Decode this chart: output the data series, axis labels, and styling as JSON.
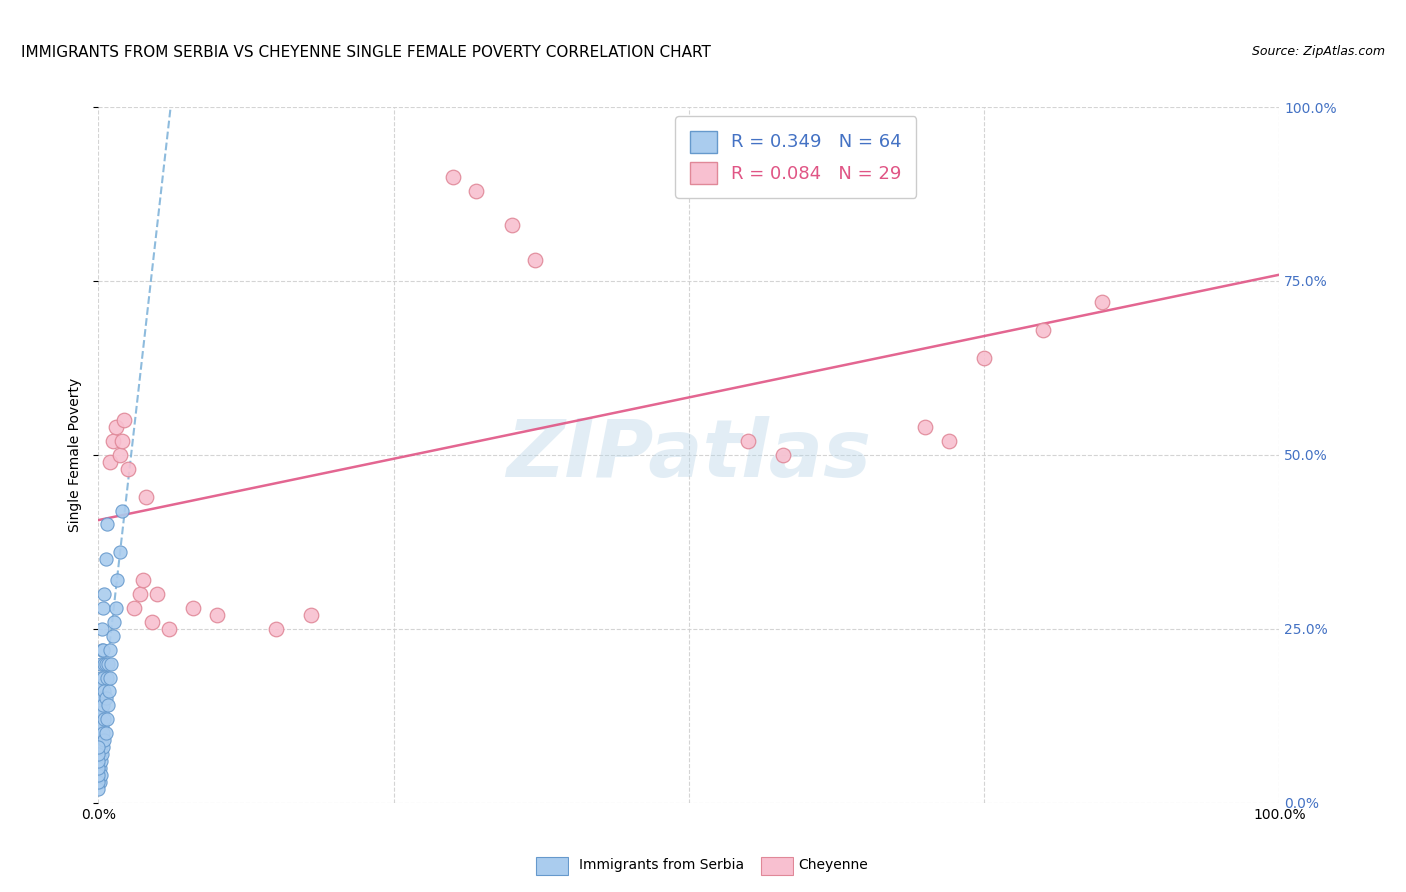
{
  "title": "IMMIGRANTS FROM SERBIA VS CHEYENNE SINGLE FEMALE POVERTY CORRELATION CHART",
  "source": "Source: ZipAtlas.com",
  "ylabel": "Single Female Poverty",
  "watermark": "ZIPatlas",
  "xlim": [
    0,
    1.0
  ],
  "ylim": [
    0,
    1.0
  ],
  "serbia_x": [
    0.001,
    0.001,
    0.001,
    0.001,
    0.001,
    0.001,
    0.001,
    0.001,
    0.001,
    0.001,
    0.002,
    0.002,
    0.002,
    0.002,
    0.002,
    0.002,
    0.002,
    0.002,
    0.002,
    0.003,
    0.003,
    0.003,
    0.003,
    0.003,
    0.003,
    0.003,
    0.003,
    0.004,
    0.004,
    0.004,
    0.004,
    0.004,
    0.004,
    0.005,
    0.005,
    0.005,
    0.005,
    0.005,
    0.006,
    0.006,
    0.006,
    0.006,
    0.007,
    0.007,
    0.007,
    0.008,
    0.008,
    0.009,
    0.01,
    0.01,
    0.011,
    0.012,
    0.013,
    0.015,
    0.016,
    0.018,
    0.02,
    0.0,
    0.0,
    0.0,
    0.0,
    0.0,
    0.0,
    0.0
  ],
  "serbia_y": [
    0.05,
    0.07,
    0.08,
    0.1,
    0.11,
    0.12,
    0.13,
    0.14,
    0.15,
    0.03,
    0.06,
    0.08,
    0.1,
    0.12,
    0.14,
    0.16,
    0.18,
    0.2,
    0.04,
    0.07,
    0.09,
    0.11,
    0.13,
    0.15,
    0.17,
    0.22,
    0.25,
    0.08,
    0.1,
    0.14,
    0.18,
    0.22,
    0.28,
    0.09,
    0.12,
    0.16,
    0.2,
    0.3,
    0.1,
    0.15,
    0.2,
    0.35,
    0.12,
    0.18,
    0.4,
    0.14,
    0.2,
    0.16,
    0.18,
    0.22,
    0.2,
    0.24,
    0.26,
    0.28,
    0.32,
    0.36,
    0.42,
    0.02,
    0.03,
    0.04,
    0.05,
    0.06,
    0.07,
    0.08
  ],
  "cheyenne_x": [
    0.01,
    0.012,
    0.015,
    0.018,
    0.02,
    0.022,
    0.025,
    0.03,
    0.035,
    0.038,
    0.04,
    0.045,
    0.05,
    0.06,
    0.08,
    0.1,
    0.15,
    0.18,
    0.3,
    0.32,
    0.35,
    0.37,
    0.55,
    0.58,
    0.7,
    0.72,
    0.75,
    0.8,
    0.85
  ],
  "cheyenne_y": [
    0.49,
    0.52,
    0.54,
    0.5,
    0.52,
    0.55,
    0.48,
    0.28,
    0.3,
    0.32,
    0.44,
    0.26,
    0.3,
    0.25,
    0.28,
    0.27,
    0.25,
    0.27,
    0.9,
    0.88,
    0.83,
    0.78,
    0.52,
    0.5,
    0.54,
    0.52,
    0.64,
    0.68,
    0.72
  ],
  "serbia_trendline_color": "#7ab0d8",
  "cheyenne_trendline_color": "#e05585",
  "serbia_dot_facecolor": "#aaccee",
  "serbia_dot_edgecolor": "#6699cc",
  "cheyenne_dot_facecolor": "#f8c0d0",
  "cheyenne_dot_edgecolor": "#e08898",
  "background_color": "#ffffff",
  "grid_color": "#d0d0d0",
  "serbia_R": "0.349",
  "serbia_N": "64",
  "cheyenne_R": "0.084",
  "cheyenne_N": "29",
  "legend_blue_color": "#4472C4",
  "legend_pink_color": "#e05585",
  "right_tick_color": "#4472C4"
}
